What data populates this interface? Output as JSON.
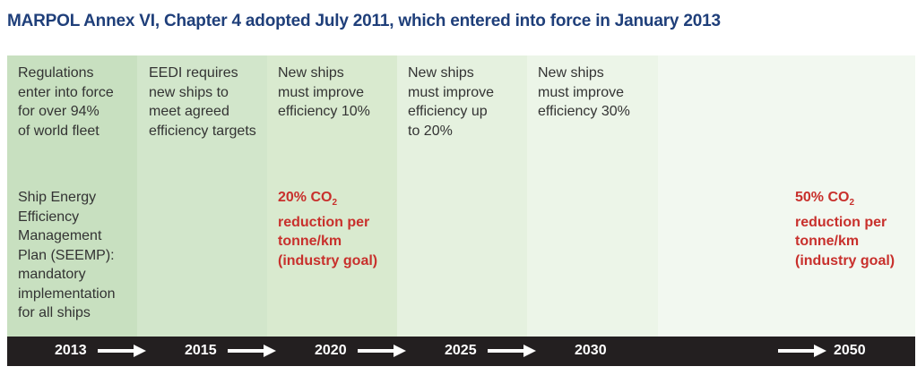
{
  "title": "MARPOL Annex VI, Chapter 4 adopted July 2011, which entered into force in January 2013",
  "columns": [
    {
      "top": "Regulations\nenter into force\nfor over 94%\nof world fleet",
      "bottom": "Ship Energy\nEfficiency\nManagement\nPlan (SEEMP):\nmandatory\nimplementation\nfor all ships"
    },
    {
      "top": "EEDI requires\nnew ships to\nmeet agreed\nefficiency targets"
    },
    {
      "top": "New ships\nmust improve\nefficiency 10%"
    },
    {
      "top": "New ships\nmust improve\nefficiency up\nto 20%"
    },
    {
      "top": "New ships\nmust improve\nefficiency 30%"
    }
  ],
  "goals": [
    {
      "line1": "20% CO",
      "sub": "2",
      "line2": "reduction per",
      "line3": "tonne/km",
      "line4": "(industry goal)"
    },
    {
      "line1": "50% CO",
      "sub": "2",
      "line2": "reduction per",
      "line3": "tonne/km",
      "line4": "(industry goal)"
    }
  ],
  "years": [
    "2013",
    "2015",
    "2020",
    "2025",
    "2030",
    "2050"
  ],
  "colors": {
    "title": "#1f3f7a",
    "goal_text": "#c8302c",
    "axis_bar": "#231f20",
    "band_shades": [
      "#c8e0c0",
      "#d2e6cb",
      "#d9eacf",
      "#e5f1df",
      "#ecf5e8",
      "#f2f8f0"
    ]
  }
}
